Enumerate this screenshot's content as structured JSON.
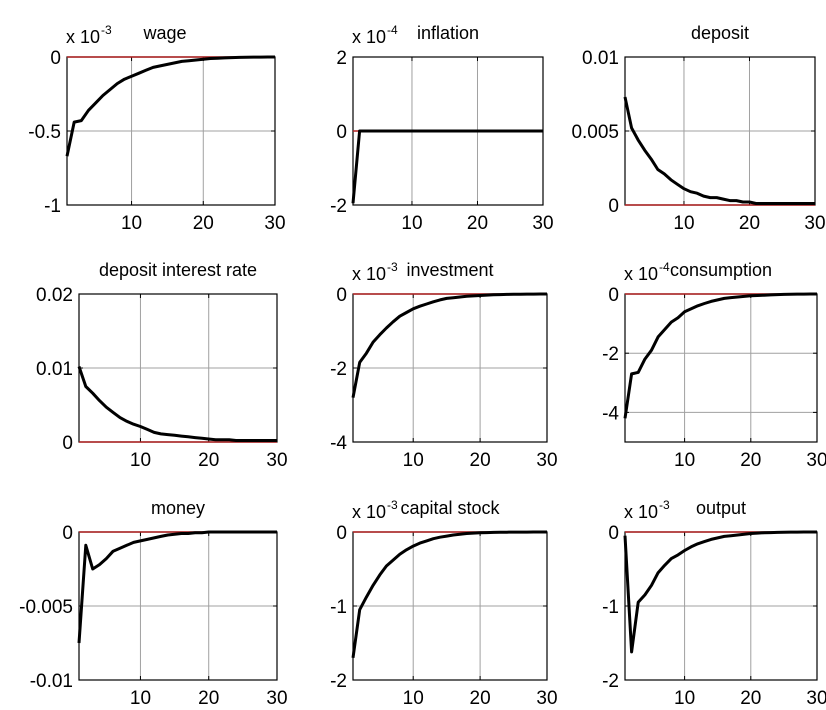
{
  "chart_data": [
    {
      "type": "line",
      "title": "wage",
      "multiplier": {
        "base": "x 10",
        "exp": "-3"
      },
      "xlim": [
        1,
        30
      ],
      "ylim": [
        -1,
        0
      ],
      "xticks": [
        10,
        20,
        30
      ],
      "yticks": [
        "0",
        "-0.5",
        "-1"
      ],
      "ytick_values": [
        0,
        -0.5,
        -1
      ],
      "zero_line": true,
      "x": [
        1,
        2,
        3,
        4,
        5,
        6,
        7,
        8,
        9,
        10,
        11,
        12,
        13,
        14,
        15,
        16,
        17,
        18,
        19,
        20,
        21,
        22,
        23,
        24,
        25,
        26,
        27,
        28,
        29,
        30
      ],
      "y": [
        -0.67,
        -0.44,
        -0.43,
        -0.36,
        -0.31,
        -0.26,
        -0.22,
        -0.18,
        -0.15,
        -0.13,
        -0.11,
        -0.09,
        -0.07,
        -0.06,
        -0.05,
        -0.04,
        -0.03,
        -0.025,
        -0.02,
        -0.015,
        -0.01,
        -0.008,
        -0.006,
        -0.004,
        -0.003,
        -0.002,
        -0.001,
        -0.001,
        0,
        0
      ]
    },
    {
      "type": "line",
      "title": "inflation",
      "multiplier": {
        "base": "x 10",
        "exp": "-4"
      },
      "xlim": [
        1,
        30
      ],
      "ylim": [
        -2,
        2
      ],
      "xticks": [
        10,
        20,
        30
      ],
      "yticks": [
        "2",
        "0",
        "-2"
      ],
      "ytick_values": [
        2,
        0,
        -2
      ],
      "zero_line": true,
      "x": [
        1,
        2,
        3,
        4,
        5,
        6,
        7,
        8,
        9,
        10,
        11,
        12,
        13,
        14,
        15,
        16,
        17,
        18,
        19,
        20,
        21,
        22,
        23,
        24,
        25,
        26,
        27,
        28,
        29,
        30
      ],
      "y": [
        -1.95,
        0,
        0,
        0,
        0,
        0,
        0,
        0,
        0,
        0,
        0,
        0,
        0,
        0,
        0,
        0,
        0,
        0,
        0,
        0,
        0,
        0,
        0,
        0,
        0,
        0,
        0,
        0,
        0,
        0
      ]
    },
    {
      "type": "line",
      "title": "deposit",
      "xlim": [
        1,
        30
      ],
      "ylim": [
        0,
        0.01
      ],
      "xticks": [
        10,
        20,
        30
      ],
      "yticks": [
        "0.01",
        "0.005",
        "0"
      ],
      "ytick_values": [
        0.01,
        0.005,
        0
      ],
      "zero_line": true,
      "x": [
        1,
        2,
        3,
        4,
        5,
        6,
        7,
        8,
        9,
        10,
        11,
        12,
        13,
        14,
        15,
        16,
        17,
        18,
        19,
        20,
        21,
        22,
        23,
        24,
        25,
        26,
        27,
        28,
        29,
        30
      ],
      "y": [
        0.0073,
        0.0052,
        0.0044,
        0.0037,
        0.0031,
        0.0024,
        0.0021,
        0.0017,
        0.0014,
        0.0011,
        0.0009,
        0.0008,
        0.0006,
        0.0005,
        0.0005,
        0.0004,
        0.0003,
        0.0003,
        0.0002,
        0.0002,
        0.0001,
        0.0001,
        0.0001,
        0.0001,
        0.0001,
        0.0001,
        0.0001,
        0.0001,
        0.0001,
        0.0001
      ]
    },
    {
      "type": "line",
      "title": "deposit interest rate",
      "xlim": [
        1,
        30
      ],
      "ylim": [
        0,
        0.02
      ],
      "xticks": [
        10,
        20,
        30
      ],
      "yticks": [
        "0.02",
        "0.01",
        "0"
      ],
      "ytick_values": [
        0.02,
        0.01,
        0
      ],
      "zero_line": true,
      "x": [
        1,
        2,
        3,
        4,
        5,
        6,
        7,
        8,
        9,
        10,
        11,
        12,
        13,
        14,
        15,
        16,
        17,
        18,
        19,
        20,
        21,
        22,
        23,
        24,
        25,
        26,
        27,
        28,
        29,
        30
      ],
      "y": [
        0.0102,
        0.0075,
        0.0066,
        0.0056,
        0.0047,
        0.004,
        0.0033,
        0.0028,
        0.0024,
        0.0021,
        0.0017,
        0.0013,
        0.0011,
        0.001,
        0.0009,
        0.0008,
        0.0007,
        0.0006,
        0.0005,
        0.0004,
        0.0003,
        0.0003,
        0.0003,
        0.0002,
        0.0002,
        0.0002,
        0.0002,
        0.0002,
        0.0002,
        0.0002
      ]
    },
    {
      "type": "line",
      "title": "investment",
      "multiplier": {
        "base": "x 10",
        "exp": "-3"
      },
      "xlim": [
        1,
        30
      ],
      "ylim": [
        -4,
        0
      ],
      "xticks": [
        10,
        20,
        30
      ],
      "yticks": [
        "0",
        "-2",
        "-4"
      ],
      "ytick_values": [
        0,
        -2,
        -4
      ],
      "zero_line": true,
      "x": [
        1,
        2,
        3,
        4,
        5,
        6,
        7,
        8,
        9,
        10,
        11,
        12,
        13,
        14,
        15,
        16,
        17,
        18,
        19,
        20,
        21,
        22,
        23,
        24,
        25,
        26,
        27,
        28,
        29,
        30
      ],
      "y": [
        -2.8,
        -1.85,
        -1.6,
        -1.3,
        -1.1,
        -0.92,
        -0.75,
        -0.6,
        -0.5,
        -0.4,
        -0.33,
        -0.27,
        -0.21,
        -0.16,
        -0.12,
        -0.1,
        -0.08,
        -0.06,
        -0.05,
        -0.04,
        -0.03,
        -0.02,
        -0.015,
        -0.01,
        -0.008,
        -0.005,
        -0.003,
        -0.002,
        -0.001,
        0
      ]
    },
    {
      "type": "line",
      "title": "consumption",
      "multiplier": {
        "base": "x 10",
        "exp": "-4"
      },
      "xlim": [
        1,
        30
      ],
      "ylim": [
        -5,
        0
      ],
      "xticks": [
        10,
        20,
        30
      ],
      "yticks": [
        "0",
        "-2",
        "-4"
      ],
      "ytick_values": [
        0,
        -2,
        -4
      ],
      "zero_line": true,
      "x": [
        1,
        2,
        3,
        4,
        5,
        6,
        7,
        8,
        9,
        10,
        11,
        12,
        13,
        14,
        15,
        16,
        17,
        18,
        19,
        20,
        21,
        22,
        23,
        24,
        25,
        26,
        27,
        28,
        29,
        30
      ],
      "y": [
        -4.2,
        -2.7,
        -2.65,
        -2.2,
        -1.9,
        -1.45,
        -1.2,
        -0.95,
        -0.8,
        -0.6,
        -0.5,
        -0.4,
        -0.32,
        -0.25,
        -0.2,
        -0.15,
        -0.12,
        -0.1,
        -0.08,
        -0.06,
        -0.05,
        -0.04,
        -0.03,
        -0.02,
        -0.015,
        -0.01,
        -0.005,
        -0.003,
        -0.001,
        0
      ]
    },
    {
      "type": "line",
      "title": "money",
      "xlim": [
        1,
        30
      ],
      "ylim": [
        -0.01,
        0
      ],
      "xticks": [
        10,
        20,
        30
      ],
      "yticks": [
        "0",
        "-0.005",
        "-0.01"
      ],
      "ytick_values": [
        0,
        -0.005,
        -0.01
      ],
      "zero_line": true,
      "x": [
        1,
        2,
        3,
        4,
        5,
        6,
        7,
        8,
        9,
        10,
        11,
        12,
        13,
        14,
        15,
        16,
        17,
        18,
        19,
        20,
        21,
        22,
        23,
        24,
        25,
        26,
        27,
        28,
        29,
        30
      ],
      "y": [
        -0.0075,
        -0.0009,
        -0.0025,
        -0.0022,
        -0.0018,
        -0.0013,
        -0.0011,
        -0.0009,
        -0.0007,
        -0.0006,
        -0.0005,
        -0.0004,
        -0.0003,
        -0.0002,
        -0.00015,
        -0.0001,
        -0.0001,
        -5e-05,
        -5e-05,
        0,
        0,
        0,
        0,
        0,
        0,
        0,
        0,
        0,
        0,
        0
      ]
    },
    {
      "type": "line",
      "title": "capital stock",
      "multiplier": {
        "base": "x 10",
        "exp": "-3"
      },
      "xlim": [
        1,
        30
      ],
      "ylim": [
        -2,
        0
      ],
      "xticks": [
        10,
        20,
        30
      ],
      "yticks": [
        "0",
        "-1",
        "-2"
      ],
      "ytick_values": [
        0,
        -1,
        -2
      ],
      "zero_line": true,
      "x": [
        1,
        2,
        3,
        4,
        5,
        6,
        7,
        8,
        9,
        10,
        11,
        12,
        13,
        14,
        15,
        16,
        17,
        18,
        19,
        20,
        21,
        22,
        23,
        24,
        25,
        26,
        27,
        28,
        29,
        30
      ],
      "y": [
        -1.7,
        -1.05,
        -0.88,
        -0.72,
        -0.58,
        -0.46,
        -0.38,
        -0.3,
        -0.24,
        -0.19,
        -0.15,
        -0.12,
        -0.09,
        -0.07,
        -0.055,
        -0.04,
        -0.03,
        -0.02,
        -0.015,
        -0.01,
        -0.008,
        -0.006,
        -0.004,
        -0.003,
        -0.002,
        -0.001,
        -0.001,
        0,
        0,
        0
      ]
    },
    {
      "type": "line",
      "title": "output",
      "multiplier": {
        "base": "x 10",
        "exp": "-3"
      },
      "xlim": [
        1,
        30
      ],
      "ylim": [
        -2,
        0
      ],
      "xticks": [
        10,
        20,
        30
      ],
      "yticks": [
        "0",
        "-1",
        "-2"
      ],
      "ytick_values": [
        0,
        -1,
        -2
      ],
      "zero_line": true,
      "x": [
        1,
        2,
        3,
        4,
        5,
        6,
        7,
        8,
        9,
        10,
        11,
        12,
        13,
        14,
        15,
        16,
        17,
        18,
        19,
        20,
        21,
        22,
        23,
        24,
        25,
        26,
        27,
        28,
        29,
        30
      ],
      "y": [
        -0.05,
        -1.62,
        -0.95,
        -0.85,
        -0.72,
        -0.55,
        -0.45,
        -0.36,
        -0.31,
        -0.25,
        -0.2,
        -0.16,
        -0.13,
        -0.1,
        -0.08,
        -0.06,
        -0.05,
        -0.04,
        -0.03,
        -0.02,
        -0.015,
        -0.01,
        -0.008,
        -0.005,
        -0.003,
        -0.002,
        -0.001,
        0,
        0,
        0
      ]
    }
  ],
  "colors": {
    "series_line": "#000000",
    "zero_line": "#b22222",
    "grid": "#a0a0a0",
    "axes": "#000000",
    "background": "#ffffff"
  }
}
